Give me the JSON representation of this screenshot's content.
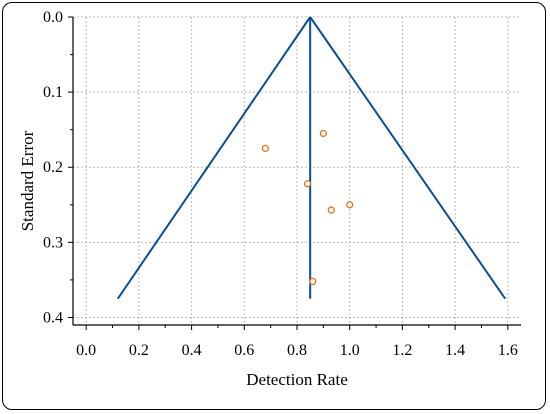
{
  "chart_data": {
    "type": "scatter",
    "title": "",
    "xlabel": "Detection Rate",
    "ylabel": "Standard Error",
    "xlim": [
      -0.05,
      1.65
    ],
    "ylim": [
      0.0,
      0.41
    ],
    "y_inverted": true,
    "grid": true,
    "x_ticks": [
      "0.0",
      "0.2",
      "0.4",
      "0.6",
      "0.8",
      "1.0",
      "1.2",
      "1.4",
      "1.6"
    ],
    "y_ticks": [
      "0.0",
      "0.1",
      "0.2",
      "0.3",
      "0.4"
    ],
    "points": [
      {
        "x": 0.68,
        "y": 0.175
      },
      {
        "x": 0.9,
        "y": 0.155
      },
      {
        "x": 0.84,
        "y": 0.222
      },
      {
        "x": 0.93,
        "y": 0.257
      },
      {
        "x": 1.0,
        "y": 0.25
      },
      {
        "x": 0.86,
        "y": 0.352
      }
    ],
    "funnel": {
      "center_x": 0.85,
      "apex_se": 0.0,
      "base_se": 0.375,
      "left_x": 0.12,
      "right_x": 1.59
    },
    "colors": {
      "points": "#e8731a",
      "funnel": "#0b4f93",
      "grid": "#b8b8b8"
    }
  }
}
